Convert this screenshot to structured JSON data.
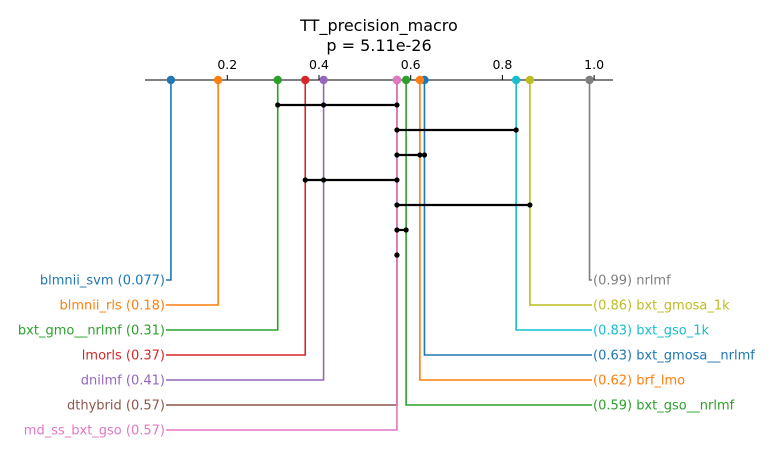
{
  "chart_data": {
    "type": "critical-difference",
    "title": "TT_precision_macro",
    "subtitle": "p = 5.11e-26",
    "axis": {
      "xlim": [
        0.0,
        1.05
      ],
      "ticks": [
        0.2,
        0.4,
        0.6,
        0.8,
        1.0
      ],
      "tick_labels": [
        "0.2",
        "0.4",
        "0.6",
        "0.8",
        "1.0"
      ],
      "grid": false
    },
    "left_methods": [
      {
        "name": "blmnii_svm",
        "value": 0.077,
        "value_label": "0.077",
        "color": "#1f77b4"
      },
      {
        "name": "blmnii_rls",
        "value": 0.18,
        "value_label": "0.18",
        "color": "#ff7f0e"
      },
      {
        "name": "bxt_gmo__nrlmf",
        "value": 0.31,
        "value_label": "0.31",
        "color": "#2ca02c"
      },
      {
        "name": "lmorls",
        "value": 0.37,
        "value_label": "0.37",
        "color": "#d62728"
      },
      {
        "name": "dnilmf",
        "value": 0.41,
        "value_label": "0.41",
        "color": "#9467bd"
      },
      {
        "name": "dthybrid",
        "value": 0.57,
        "value_label": "0.57",
        "color": "#8c564b"
      },
      {
        "name": "md_ss_bxt_gso",
        "value": 0.57,
        "value_label": "0.57",
        "color": "#e377c2"
      }
    ],
    "right_methods": [
      {
        "name": "nrlmf",
        "value": 0.99,
        "value_label": "0.99",
        "color": "#7f7f7f"
      },
      {
        "name": "bxt_gmosa_1k",
        "value": 0.86,
        "value_label": "0.86",
        "color": "#bcbd22"
      },
      {
        "name": "bxt_gso_1k",
        "value": 0.83,
        "value_label": "0.83",
        "color": "#17becf"
      },
      {
        "name": "bxt_gmosa__nrlmf",
        "value": 0.63,
        "value_label": "0.63",
        "color": "#1f77b4"
      },
      {
        "name": "brf_lmo",
        "value": 0.62,
        "value_label": "0.62",
        "color": "#ff7f0e"
      },
      {
        "name": "bxt_gso__nrlmf",
        "value": 0.59,
        "value_label": "0.59",
        "color": "#2ca02c"
      }
    ],
    "cliques": [
      {
        "values": [
          0.31,
          0.41,
          0.57
        ]
      },
      {
        "values": [
          0.57,
          0.83
        ]
      },
      {
        "values": [
          0.57,
          0.62,
          0.63
        ]
      },
      {
        "values": [
          0.37,
          0.41,
          0.57
        ]
      },
      {
        "values": [
          0.57,
          0.86
        ]
      },
      {
        "values": [
          0.57,
          0.59
        ]
      },
      {
        "values": [
          0.57,
          0.57
        ]
      }
    ]
  }
}
